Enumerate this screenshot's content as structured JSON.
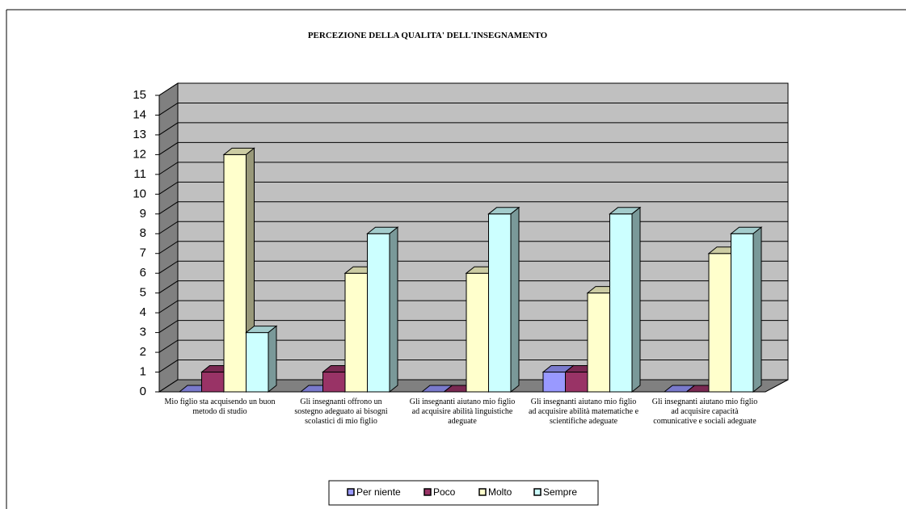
{
  "chart_data": {
    "type": "bar3d",
    "title": "PERCEZIONE DELLA QUALITA' DELL'INSEGNAMENTO",
    "categories": [
      "Mio figlio sta acquisendo un buon metodo di studio",
      "Gli insegnanti offrono un sostegno adeguato ai bisogni scolastici di mio figlio",
      "Gli insegnanti aiutano mio figlio ad acquisire abilità linguistiche adeguate",
      "Gli insegnanti aiutano mio figlio ad acquisire abilità matematiche e scientifiche adeguate",
      "Gli insegnanti aiutano mio figlio ad acquisire capacità comunicative e sociali adeguate"
    ],
    "series": [
      {
        "name": "Per niente",
        "color": "#9999ff",
        "values": [
          0,
          0,
          0,
          1,
          0
        ]
      },
      {
        "name": "Poco",
        "color": "#993366",
        "values": [
          1,
          1,
          0,
          1,
          0
        ]
      },
      {
        "name": "Molto",
        "color": "#ffffcc",
        "values": [
          12,
          6,
          6,
          5,
          7
        ]
      },
      {
        "name": "Sempre",
        "color": "#ccffff",
        "values": [
          3,
          8,
          9,
          9,
          8
        ]
      }
    ],
    "ylim": [
      0,
      15
    ],
    "yticks": [
      0,
      1,
      2,
      3,
      4,
      5,
      6,
      7,
      8,
      9,
      10,
      11,
      12,
      13,
      14,
      15
    ],
    "grid": true,
    "legend": "bottom"
  }
}
